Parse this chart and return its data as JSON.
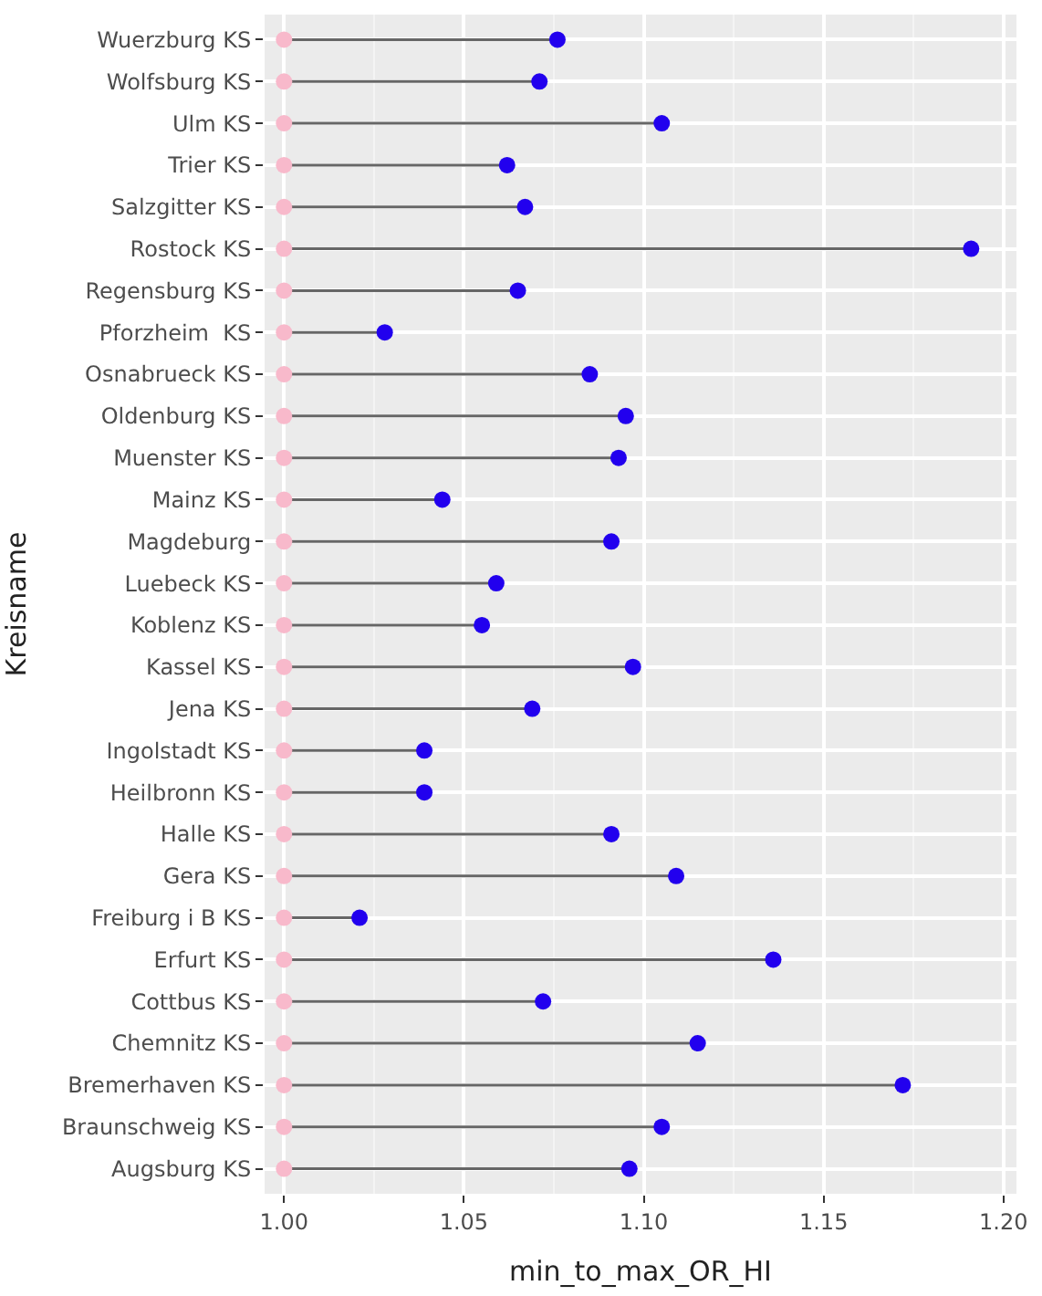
{
  "chart_data": {
    "type": "lollipop",
    "orientation": "horizontal",
    "xlabel": "min_to_max_OR_HI",
    "ylabel": "Kreisname",
    "categories": [
      "Wuerzburg KS",
      "Wolfsburg KS",
      "Ulm KS",
      "Trier KS",
      "Salzgitter KS",
      "Rostock KS",
      "Regensburg KS",
      "Pforzheim  KS",
      "Osnabrueck KS",
      "Oldenburg KS",
      "Muenster KS",
      "Mainz KS",
      "Magdeburg",
      "Luebeck KS",
      "Koblenz KS",
      "Kassel KS",
      "Jena KS",
      "Ingolstadt KS",
      "Heilbronn KS",
      "Halle KS",
      "Gera KS",
      "Freiburg i B KS",
      "Erfurt KS",
      "Cottbus KS",
      "Chemnitz KS",
      "Bremerhaven KS",
      "Braunschweig KS",
      "Augsburg KS"
    ],
    "series": [
      {
        "color": "#f8b9cb",
        "values": [
          1.0,
          1.0,
          1.0,
          1.0,
          1.0,
          1.0,
          1.0,
          1.0,
          1.0,
          1.0,
          1.0,
          1.0,
          1.0,
          1.0,
          1.0,
          1.0,
          1.0,
          1.0,
          1.0,
          1.0,
          1.0,
          1.0,
          1.0,
          1.0,
          1.0,
          1.0,
          1.0,
          1.0
        ]
      },
      {
        "color": "#2200ee",
        "values": [
          1.076,
          1.071,
          1.105,
          1.062,
          1.067,
          1.191,
          1.065,
          1.028,
          1.085,
          1.095,
          1.093,
          1.044,
          1.091,
          1.059,
          1.055,
          1.097,
          1.069,
          1.039,
          1.039,
          1.091,
          1.109,
          1.021,
          1.136,
          1.072,
          1.115,
          1.172,
          1.105,
          1.096
        ]
      }
    ],
    "xlim": [
      0.9946,
      1.2036
    ],
    "xticks": [
      {
        "value": 1.0,
        "label": "1.00"
      },
      {
        "value": 1.05,
        "label": "1.05"
      },
      {
        "value": 1.1,
        "label": "1.10"
      },
      {
        "value": 1.15,
        "label": "1.15"
      },
      {
        "value": 1.2,
        "label": "1.20"
      }
    ],
    "grid": true,
    "marker": "circle"
  }
}
